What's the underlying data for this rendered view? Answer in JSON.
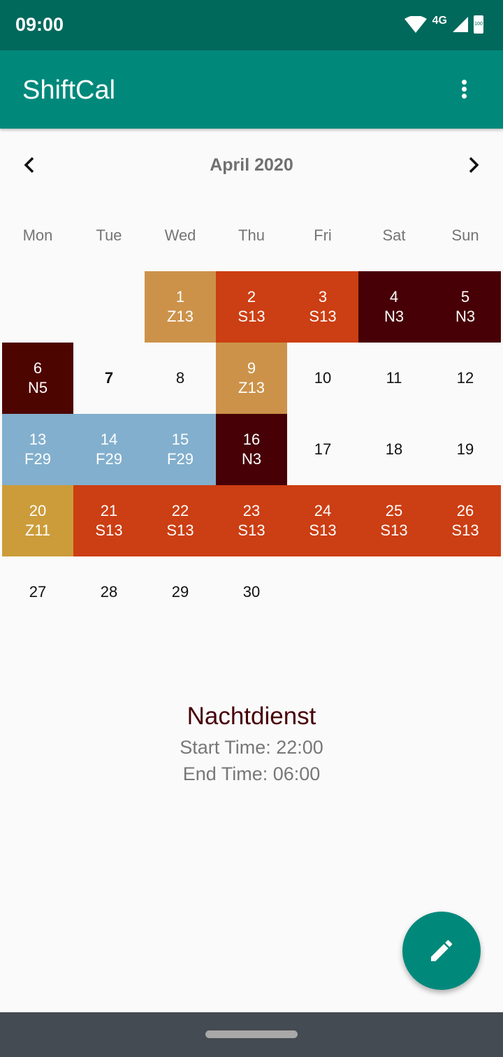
{
  "status_bar": {
    "time": "09:00",
    "network": "4G",
    "battery": "100"
  },
  "app_bar": {
    "title": "ShiftCal",
    "menu_icon": "more-vert-icon"
  },
  "calendar": {
    "month_label": "April 2020",
    "prev_icon": "chevron-left-icon",
    "next_icon": "chevron-right-icon",
    "weekdays": [
      "Mon",
      "Tue",
      "Wed",
      "Thu",
      "Fri",
      "Sat",
      "Sun"
    ],
    "first_weekday_offset": 2,
    "today": 7,
    "shift_colors": {
      "Z13": "#cc924a",
      "S13": "#cc3e13",
      "N3": "#470006",
      "N5": "#4d0500",
      "F29": "#82afcd",
      "Z11": "#cc9c3a"
    },
    "days": [
      {
        "day": "1",
        "shift": "Z13"
      },
      {
        "day": "2",
        "shift": "S13"
      },
      {
        "day": "3",
        "shift": "S13"
      },
      {
        "day": "4",
        "shift": "N3"
      },
      {
        "day": "5",
        "shift": "N3"
      },
      {
        "day": "6",
        "shift": "N5"
      },
      {
        "day": "7",
        "shift": ""
      },
      {
        "day": "8",
        "shift": ""
      },
      {
        "day": "9",
        "shift": "Z13"
      },
      {
        "day": "10",
        "shift": ""
      },
      {
        "day": "11",
        "shift": ""
      },
      {
        "day": "12",
        "shift": ""
      },
      {
        "day": "13",
        "shift": "F29"
      },
      {
        "day": "14",
        "shift": "F29"
      },
      {
        "day": "15",
        "shift": "F29"
      },
      {
        "day": "16",
        "shift": "N3"
      },
      {
        "day": "17",
        "shift": ""
      },
      {
        "day": "18",
        "shift": ""
      },
      {
        "day": "19",
        "shift": ""
      },
      {
        "day": "20",
        "shift": "Z11"
      },
      {
        "day": "21",
        "shift": "S13"
      },
      {
        "day": "22",
        "shift": "S13"
      },
      {
        "day": "23",
        "shift": "S13"
      },
      {
        "day": "24",
        "shift": "S13"
      },
      {
        "day": "25",
        "shift": "S13"
      },
      {
        "day": "26",
        "shift": "S13"
      },
      {
        "day": "27",
        "shift": ""
      },
      {
        "day": "28",
        "shift": ""
      },
      {
        "day": "29",
        "shift": ""
      },
      {
        "day": "30",
        "shift": ""
      }
    ]
  },
  "shift_info": {
    "name": "Nachtdienst",
    "name_color": "#470006",
    "start": "Start Time: 22:00",
    "end": "End Time: 06:00"
  },
  "fab": {
    "icon": "edit-pencil-icon"
  }
}
